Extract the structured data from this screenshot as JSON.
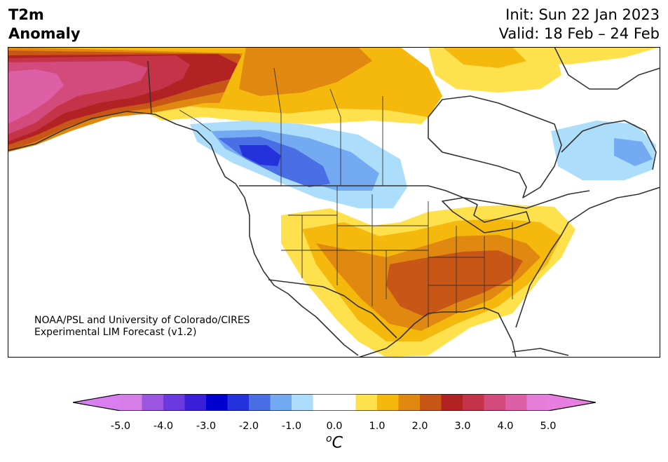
{
  "title": {
    "left_line1": "T2m",
    "left_line2": "Anomaly",
    "right_line1": "Init: Sun 22 Jan 2023",
    "right_line2": "Valid: 18 Feb – 24 Feb"
  },
  "credit": {
    "line1": "NOAA/PSL and University of Colorado/CIRES",
    "line2": "Experimental LIM Forecast (v1.2)"
  },
  "colorbar": {
    "unit_main": "C",
    "unit_sup": "o",
    "min": -5.0,
    "max": 5.0,
    "step": 0.5,
    "tick_labels": [
      "-5.0",
      "-4.0",
      "-3.0",
      "-2.0",
      "-1.0",
      "0.0",
      "1.0",
      "2.0",
      "3.0",
      "4.0",
      "5.0"
    ],
    "under_color": "#d87ef0",
    "over_color": "#e87ee0",
    "colors": [
      "#d57ee8",
      "#9b55e0",
      "#6a3ae0",
      "#3a1ed8",
      "#0000d0",
      "#2532dc",
      "#4a6fe5",
      "#74aaf1",
      "#acdefc",
      "#ffffff",
      "#ffffff",
      "#ffe14e",
      "#f5b80d",
      "#e0880f",
      "#c85617",
      "#b22222",
      "#c43348",
      "#d34a7c",
      "#dd5fa5",
      "#e57ed8"
    ]
  },
  "map": {
    "region": "North America",
    "land_color": "#ffffff",
    "outline_color": "#333333"
  }
}
